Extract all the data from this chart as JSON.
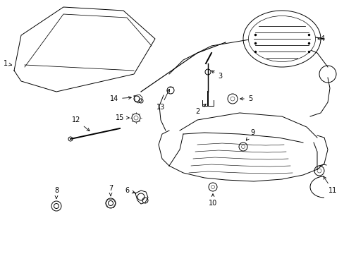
{
  "background_color": "#ffffff",
  "line_color": "#000000",
  "fig_width": 4.89,
  "fig_height": 3.6,
  "dpi": 100,
  "font_size": 7,
  "lw": 0.7
}
